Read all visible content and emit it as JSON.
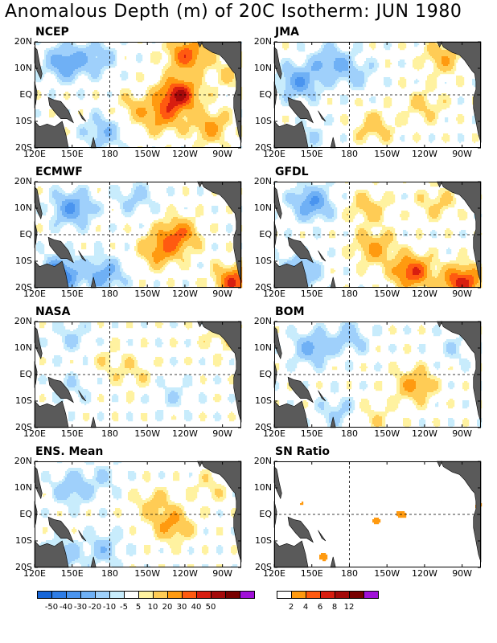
{
  "title": "Anomalous Depth (m) of 20C Isotherm: JUN 1980",
  "panels": [
    {
      "label": "NCEP"
    },
    {
      "label": "JMA"
    },
    {
      "label": "ECMWF"
    },
    {
      "label": "GFDL"
    },
    {
      "label": "NASA"
    },
    {
      "label": "BOM"
    },
    {
      "label": "ENS. Mean"
    },
    {
      "label": "SN Ratio"
    }
  ],
  "chart_data": {
    "type": "heatmap",
    "title": "Anomalous Depth (m) of 20C Isotherm: JUN 1980",
    "y_ticks": [
      "20N",
      "10N",
      "EQ",
      "10S",
      "20S"
    ],
    "x_ticks": [
      "120E",
      "150E",
      "180",
      "150W",
      "120W",
      "90W"
    ],
    "xlim": [
      "120E",
      "75W"
    ],
    "ylim": [
      "20S",
      "20N"
    ],
    "reference_lines": [
      "180",
      "EQ"
    ],
    "anomaly_scale": {
      "levels": [
        "-50",
        "-40",
        "-30",
        "-20",
        "-10",
        "-5",
        "5",
        "10",
        "20",
        "30",
        "40",
        "50"
      ],
      "colors": [
        "#1565d8",
        "#2f7de6",
        "#4a94ef",
        "#6fb0f5",
        "#9fd0fb",
        "#c8ecfc",
        "#ffffff",
        "#fff2a0",
        "#ffcc55",
        "#ff9a10",
        "#ff5a10",
        "#d81e10",
        "#a40a0a",
        "#780000",
        "#a010d8"
      ]
    },
    "sn_scale": {
      "levels": [
        "2",
        "4",
        "6",
        "8",
        "12"
      ],
      "colors": [
        "#ffffff",
        "#ff9a10",
        "#ff5a10",
        "#d81e10",
        "#a40a0a",
        "#780000",
        "#a010d8"
      ]
    },
    "land_color": "#5a5a5a",
    "panels": [
      {
        "model": "NCEP",
        "features": [
          {
            "lon": 235,
            "lat": 0,
            "value": 50
          },
          {
            "lon": 242,
            "lat": 15,
            "value": 35
          },
          {
            "lon": 222,
            "lat": -8,
            "value": 25
          },
          {
            "lon": 260,
            "lat": -12,
            "value": 22
          },
          {
            "lon": 200,
            "lat": -5,
            "value": 12
          },
          {
            "lon": 145,
            "lat": 12,
            "value": -30
          },
          {
            "lon": 170,
            "lat": 14,
            "value": -15
          },
          {
            "lon": 175,
            "lat": -14,
            "value": -18
          },
          {
            "lon": 275,
            "lat": 8,
            "value": 10
          }
        ]
      },
      {
        "model": "JMA",
        "features": [
          {
            "lon": 140,
            "lat": 5,
            "value": -28
          },
          {
            "lon": 165,
            "lat": 12,
            "value": -22
          },
          {
            "lon": 200,
            "lat": -12,
            "value": 15
          },
          {
            "lon": 240,
            "lat": -4,
            "value": 12
          },
          {
            "lon": 255,
            "lat": 14,
            "value": 18
          },
          {
            "lon": 185,
            "lat": 8,
            "value": -12
          },
          {
            "lon": 150,
            "lat": -16,
            "value": -8
          }
        ]
      },
      {
        "model": "ECMWF",
        "features": [
          {
            "lon": 235,
            "lat": 0,
            "value": 30
          },
          {
            "lon": 220,
            "lat": -6,
            "value": 25
          },
          {
            "lon": 150,
            "lat": 10,
            "value": -30
          },
          {
            "lon": 140,
            "lat": -15,
            "value": -40
          },
          {
            "lon": 175,
            "lat": -15,
            "value": -25
          },
          {
            "lon": 280,
            "lat": -18,
            "value": 40
          },
          {
            "lon": 200,
            "lat": 14,
            "value": -12
          }
        ]
      },
      {
        "model": "GFDL",
        "features": [
          {
            "lon": 150,
            "lat": 12,
            "value": -30
          },
          {
            "lon": 195,
            "lat": 10,
            "value": 15
          },
          {
            "lon": 230,
            "lat": -14,
            "value": 40
          },
          {
            "lon": 270,
            "lat": -18,
            "value": 45
          },
          {
            "lon": 200,
            "lat": -5,
            "value": 22
          },
          {
            "lon": 140,
            "lat": -14,
            "value": -25
          },
          {
            "lon": 250,
            "lat": 12,
            "value": 12
          }
        ]
      },
      {
        "model": "NASA",
        "features": [
          {
            "lon": 200,
            "lat": 0,
            "value": 8
          },
          {
            "lon": 150,
            "lat": -5,
            "value": -8
          },
          {
            "lon": 230,
            "lat": -8,
            "value": -8
          },
          {
            "lon": 150,
            "lat": 14,
            "value": -10
          },
          {
            "lon": 270,
            "lat": 14,
            "value": 10
          },
          {
            "lon": 180,
            "lat": 5,
            "value": 7
          }
        ]
      },
      {
        "model": "BOM",
        "features": [
          {
            "lon": 232,
            "lat": -4,
            "value": 22
          },
          {
            "lon": 150,
            "lat": 10,
            "value": -22
          },
          {
            "lon": 180,
            "lat": 14,
            "value": -15
          },
          {
            "lon": 170,
            "lat": -14,
            "value": -12
          },
          {
            "lon": 265,
            "lat": 10,
            "value": -8
          },
          {
            "lon": 200,
            "lat": -16,
            "value": 8
          }
        ]
      },
      {
        "model": "ENS. Mean",
        "features": [
          {
            "lon": 230,
            "lat": -4,
            "value": 22
          },
          {
            "lon": 215,
            "lat": 4,
            "value": 12
          },
          {
            "lon": 150,
            "lat": 10,
            "value": -18
          },
          {
            "lon": 175,
            "lat": -13,
            "value": -15
          },
          {
            "lon": 140,
            "lat": -16,
            "value": -20
          },
          {
            "lon": 260,
            "lat": 10,
            "value": 8
          },
          {
            "lon": 175,
            "lat": 14,
            "value": -8
          }
        ]
      },
      {
        "model": "SN Ratio",
        "features": [
          {
            "lon": 150,
            "lat": 12,
            "value": 2
          },
          {
            "lon": 140,
            "lat": 4,
            "value": 2
          },
          {
            "lon": 220,
            "lat": 0,
            "value": 3
          },
          {
            "lon": 200,
            "lat": -3,
            "value": 2
          },
          {
            "lon": 160,
            "lat": -16,
            "value": 2
          },
          {
            "lon": 195,
            "lat": 1,
            "value": 2
          },
          {
            "lon": 282,
            "lat": 3,
            "value": 2
          }
        ]
      }
    ]
  }
}
